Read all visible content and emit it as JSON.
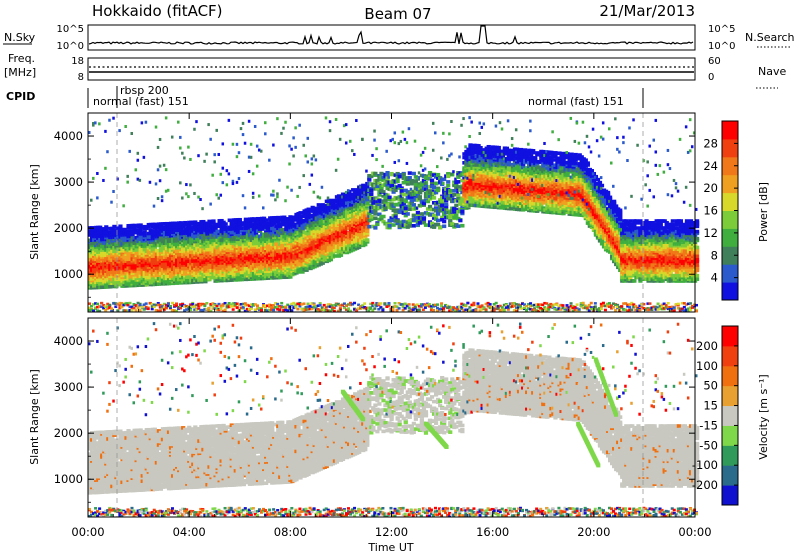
{
  "header": {
    "station": "Hokkaido (fitACF)",
    "beam": "Beam 07",
    "date": "21/Mar/2013"
  },
  "top_panels": {
    "nsky_label": "N.Sky",
    "nsky_ticks": [
      "10^5",
      "10^0"
    ],
    "nsearch_label": "N.Search",
    "nsearch_ticks": [
      "10^5",
      "10^0"
    ],
    "freq_label_1": "Freq.",
    "freq_label_2": "[MHz]",
    "freq_ticks": [
      "18",
      "8"
    ],
    "nave_label": "Nave",
    "nave_ticks": [
      "60",
      "0"
    ],
    "cpid_label": "CPID",
    "cpid_entries": [
      {
        "text": "normal (fast) 151",
        "start": "00:00"
      },
      {
        "text": "rbsp 200",
        "start": "01:00"
      },
      {
        "text": "normal (fast) 151",
        "start": "20:00"
      }
    ]
  },
  "chart_data": [
    {
      "type": "heatmap",
      "name": "power",
      "ylabel": "Slant Range [km]",
      "xlabel": "Time UT",
      "x_ticks": [
        "00:00",
        "04:00",
        "08:00",
        "12:00",
        "16:00",
        "20:00",
        "00:00"
      ],
      "xlim_hours": [
        0,
        24
      ],
      "y_ticks": [
        1000,
        2000,
        3000,
        4000
      ],
      "ylim": [
        180,
        4500
      ],
      "colorbar": {
        "label": "Power [dB]",
        "ticks": [
          4,
          8,
          12,
          16,
          20,
          24,
          28
        ],
        "range": [
          0,
          32
        ],
        "colors": [
          "#1010e0",
          "#2a5acc",
          "#3f7f5a",
          "#3fae3f",
          "#7ccc3a",
          "#d8d82a",
          "#f0a020",
          "#f07818",
          "#f04010",
          "#ff0000"
        ]
      }
    },
    {
      "type": "heatmap",
      "name": "velocity",
      "ylabel": "Slant Range [km]",
      "xlabel": "Time UT",
      "x_ticks": [
        "00:00",
        "04:00",
        "08:00",
        "12:00",
        "16:00",
        "20:00",
        "00:00"
      ],
      "xlim_hours": [
        0,
        24
      ],
      "y_ticks": [
        1000,
        2000,
        3000,
        4000
      ],
      "ylim": [
        180,
        4500
      ],
      "colorbar": {
        "label": "Velocity [m s⁻¹]",
        "ticks": [
          200,
          100,
          50,
          15,
          -15,
          -50,
          -100,
          -200
        ],
        "colors": [
          "#1010d0",
          "#2a6a8a",
          "#2f9a5a",
          "#7fd84a",
          "#c8c8c0",
          "#e8a030",
          "#f07010",
          "#f04010",
          "#ff0000"
        ]
      }
    }
  ]
}
